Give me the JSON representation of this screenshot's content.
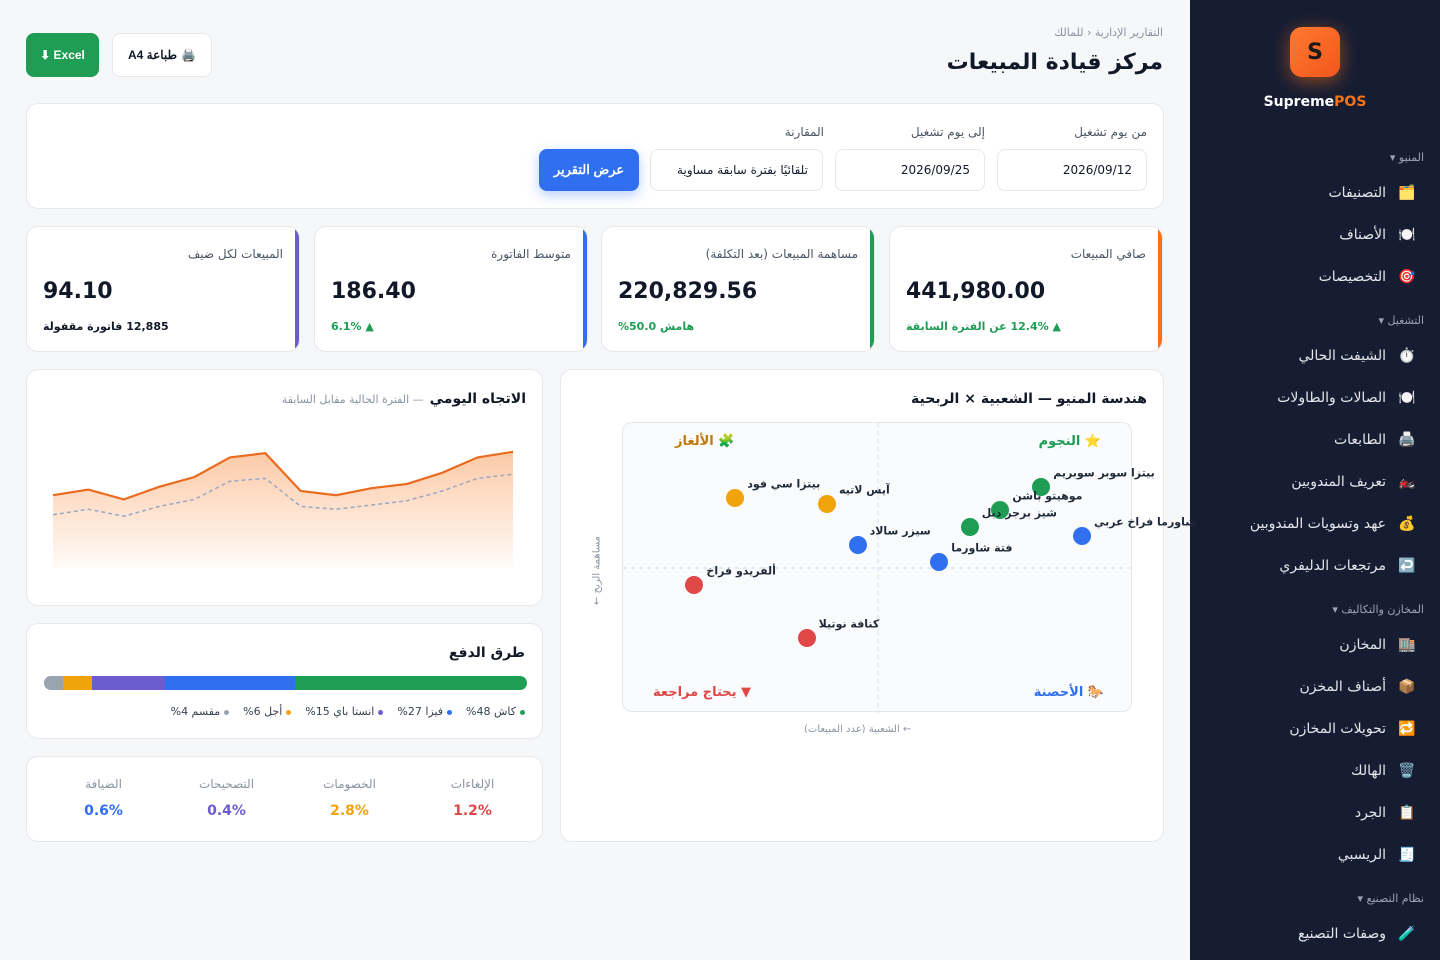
{
  "sidebar": {
    "logo_letter": "S",
    "brand_part1": "Supreme",
    "brand_part2": "POS",
    "sections": [
      {
        "label": "المنيو ▾"
      },
      {
        "label": "التشغيل ▾"
      },
      {
        "label": "المخازن والتكاليف ▾"
      },
      {
        "label": "نظام التصنيع ▾"
      }
    ],
    "items": [
      {
        "label": "التصنيفات",
        "icon": "🗂️"
      },
      {
        "label": "الأصناف",
        "icon": "🍽️"
      },
      {
        "label": "التخصيصات",
        "icon": "🎯"
      },
      {
        "label": "الشيفت الحالي",
        "icon": "⏱️"
      },
      {
        "label": "الصالات والطاولات",
        "icon": "🍽️"
      },
      {
        "label": "الطابعات",
        "icon": "🖨️"
      },
      {
        "label": "تعريف المندوبين",
        "icon": "🏍️"
      },
      {
        "label": "عهد وتسويات المندوبين",
        "icon": "💰"
      },
      {
        "label": "مرتجعات الدليفري",
        "icon": "↩️"
      },
      {
        "label": "المخازن",
        "icon": "🏬"
      },
      {
        "label": "أصناف المخزن",
        "icon": "📦"
      },
      {
        "label": "تحويلات المخازن",
        "icon": "🔁"
      },
      {
        "label": "الهالك",
        "icon": "🗑️"
      },
      {
        "label": "الجرد",
        "icon": "📋"
      },
      {
        "label": "الريسبي",
        "icon": "🧾"
      },
      {
        "label": "وصفات التصنيع",
        "icon": "🧪"
      }
    ]
  },
  "header": {
    "breadcrumb": "التقارير الإدارية ‹ للمالك",
    "title": "مركز قيادة المبيعات",
    "excel_label": "Excel ⬇",
    "print_label": "طباعة A4",
    "print_icon": "🖨️"
  },
  "filter": {
    "from_label": "من يوم تشغيل",
    "from_value": "2026/09/12",
    "to_label": "إلى يوم تشغيل",
    "to_value": "2026/09/25",
    "compare_label": "المقارنة",
    "compare_value": "تلقائيًا بفترة سابقة مساوية",
    "submit_label": "عرض التقرير"
  },
  "kpis": [
    {
      "label": "صافي المبيعات",
      "value": "441,980.00",
      "sub": "▲ 12.4% عن الفترة السابقة",
      "color": "#f97316",
      "sub_color": "#1f9d55"
    },
    {
      "label": "مساهمة المبيعات (بعد التكلفة)",
      "value": "220,829.56",
      "sub": "هامش 50.0%",
      "color": "#1f9d55",
      "sub_color": "#1f9d55"
    },
    {
      "label": "متوسط الفاتورة",
      "value": "186.40",
      "sub": "▲ 6.1%",
      "color": "#2f6ff0",
      "sub_color": "#1f9d55"
    },
    {
      "label": "المبيعات لكل ضيف",
      "value": "94.10",
      "sub": "12,885 فاتورة مقفولة",
      "color": "#6d5bd0",
      "sub_color": "#111827"
    }
  ],
  "trend": {
    "title": "الاتجاه اليومي",
    "subtitle": "— الفترة الحالية مقابل السابقة",
    "chart_data": {
      "type": "area",
      "series": [
        {
          "values": [
            52,
            56,
            49,
            58,
            65,
            79,
            82,
            55,
            52,
            57,
            60,
            68,
            79,
            83
          ]
        },
        {
          "values": [
            38,
            42,
            37,
            44,
            49,
            62,
            64,
            44,
            42,
            45,
            48,
            55,
            64,
            67
          ]
        }
      ],
      "ylim": [
        0,
        100
      ]
    }
  },
  "payments": {
    "title": "طرق الدفع",
    "chart_data": {
      "type": "bar",
      "categories": [
        "كاش",
        "فيزا",
        "انستا باي",
        "أجل",
        "مقسم"
      ],
      "values": [
        48,
        27,
        15,
        6,
        4
      ]
    },
    "colors": [
      "#1f9d55",
      "#2f6ff0",
      "#6d5bd0",
      "#f0a30a",
      "#9aa3b0"
    ],
    "legend": [
      "كاش 48%",
      "فيزا 27%",
      "انستا باي 15%",
      "أجل 6%",
      "مقسم 4%"
    ]
  },
  "stats": [
    {
      "label": "الإلغاءات",
      "value": "1.2%",
      "color": "#e04848"
    },
    {
      "label": "الخصومات",
      "value": "2.8%",
      "color": "#f0a30a"
    },
    {
      "label": "التصحيحات",
      "value": "0.4%",
      "color": "#6d5bd0"
    },
    {
      "label": "الضيافة",
      "value": "0.6%",
      "color": "#2f6ff0"
    }
  ],
  "matrix": {
    "title": "هندسة المنيو — الشعبية × الربحية",
    "y_axis": "مساهمة الربح ←",
    "x_axis": "← الشعبية (عدد المبيعات)",
    "quadrants": {
      "stars": "⭐ النجوم",
      "puzzles": "🧩 الألغاز",
      "horses": "🐎 الأحصنة",
      "review": "▼ يحتاج مراجعة"
    },
    "chart_data": {
      "type": "scatter",
      "points": [
        {
          "name": "بيتزا سوبر سوبريم",
          "x": 82,
          "y": 78,
          "color": "#1f9d55"
        },
        {
          "name": "موهيتو باشن",
          "x": 74,
          "y": 70,
          "color": "#1f9d55"
        },
        {
          "name": "شيز برجر دبل",
          "x": 68,
          "y": 64,
          "color": "#1f9d55"
        },
        {
          "name": "شاورما فراخ عربي",
          "x": 90,
          "y": 61,
          "color": "#2f6ff0"
        },
        {
          "name": "فتة شاورما",
          "x": 62,
          "y": 52,
          "color": "#2f6ff0"
        },
        {
          "name": "سيزر سالاد",
          "x": 46,
          "y": 58,
          "color": "#2f6ff0"
        },
        {
          "name": "آيس لاتيه",
          "x": 40,
          "y": 72,
          "color": "#f0a30a"
        },
        {
          "name": "بيتزا سي فود",
          "x": 22,
          "y": 74,
          "color": "#f0a30a"
        },
        {
          "name": "ألفريدو فراخ",
          "x": 14,
          "y": 44,
          "color": "#e04848"
        },
        {
          "name": "كنافة نوتيلا",
          "x": 36,
          "y": 26,
          "color": "#e04848"
        }
      ]
    }
  }
}
